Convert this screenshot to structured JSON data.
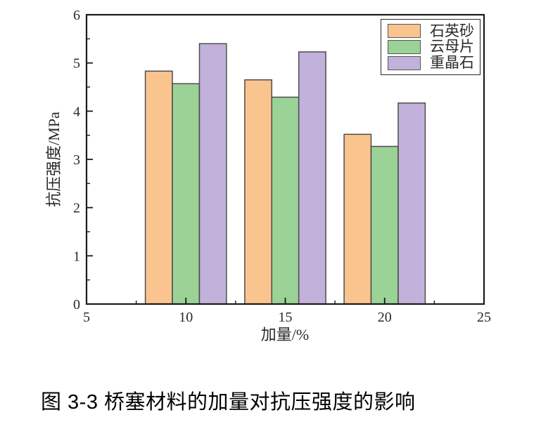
{
  "figure": {
    "caption": "图 3-3 桥塞材料的加量对抗压强度的影响"
  },
  "chart_data": {
    "type": "bar",
    "title": "",
    "xlabel": "加量/%",
    "ylabel": "抗压强度/MPa",
    "xlim": [
      5,
      25
    ],
    "ylim": [
      0,
      6
    ],
    "x_major_ticks": [
      5,
      10,
      15,
      20,
      25
    ],
    "x_minor_ticks": [
      7.5,
      12.5,
      17.5,
      22.5
    ],
    "y_major_ticks": [
      0,
      1,
      2,
      3,
      4,
      5,
      6
    ],
    "y_minor_ticks": [
      0.5,
      1.5,
      2.5,
      3.5,
      4.5,
      5.5
    ],
    "grid": false,
    "legend_position": "top-right",
    "categories": [
      10,
      15,
      20
    ],
    "series": [
      {
        "name": "石英砂",
        "color": "#FAC48F",
        "values": [
          4.83,
          4.65,
          3.52
        ]
      },
      {
        "name": "云母片",
        "color": "#9BD296",
        "values": [
          4.57,
          4.29,
          3.27
        ]
      },
      {
        "name": "重晶石",
        "color": "#C2B2DB",
        "values": [
          5.4,
          5.23,
          4.17
        ]
      }
    ],
    "bar_width_units": 1.36,
    "bar_edge_color": "#4d4d4d",
    "axis_color": "#1a1a1a"
  }
}
